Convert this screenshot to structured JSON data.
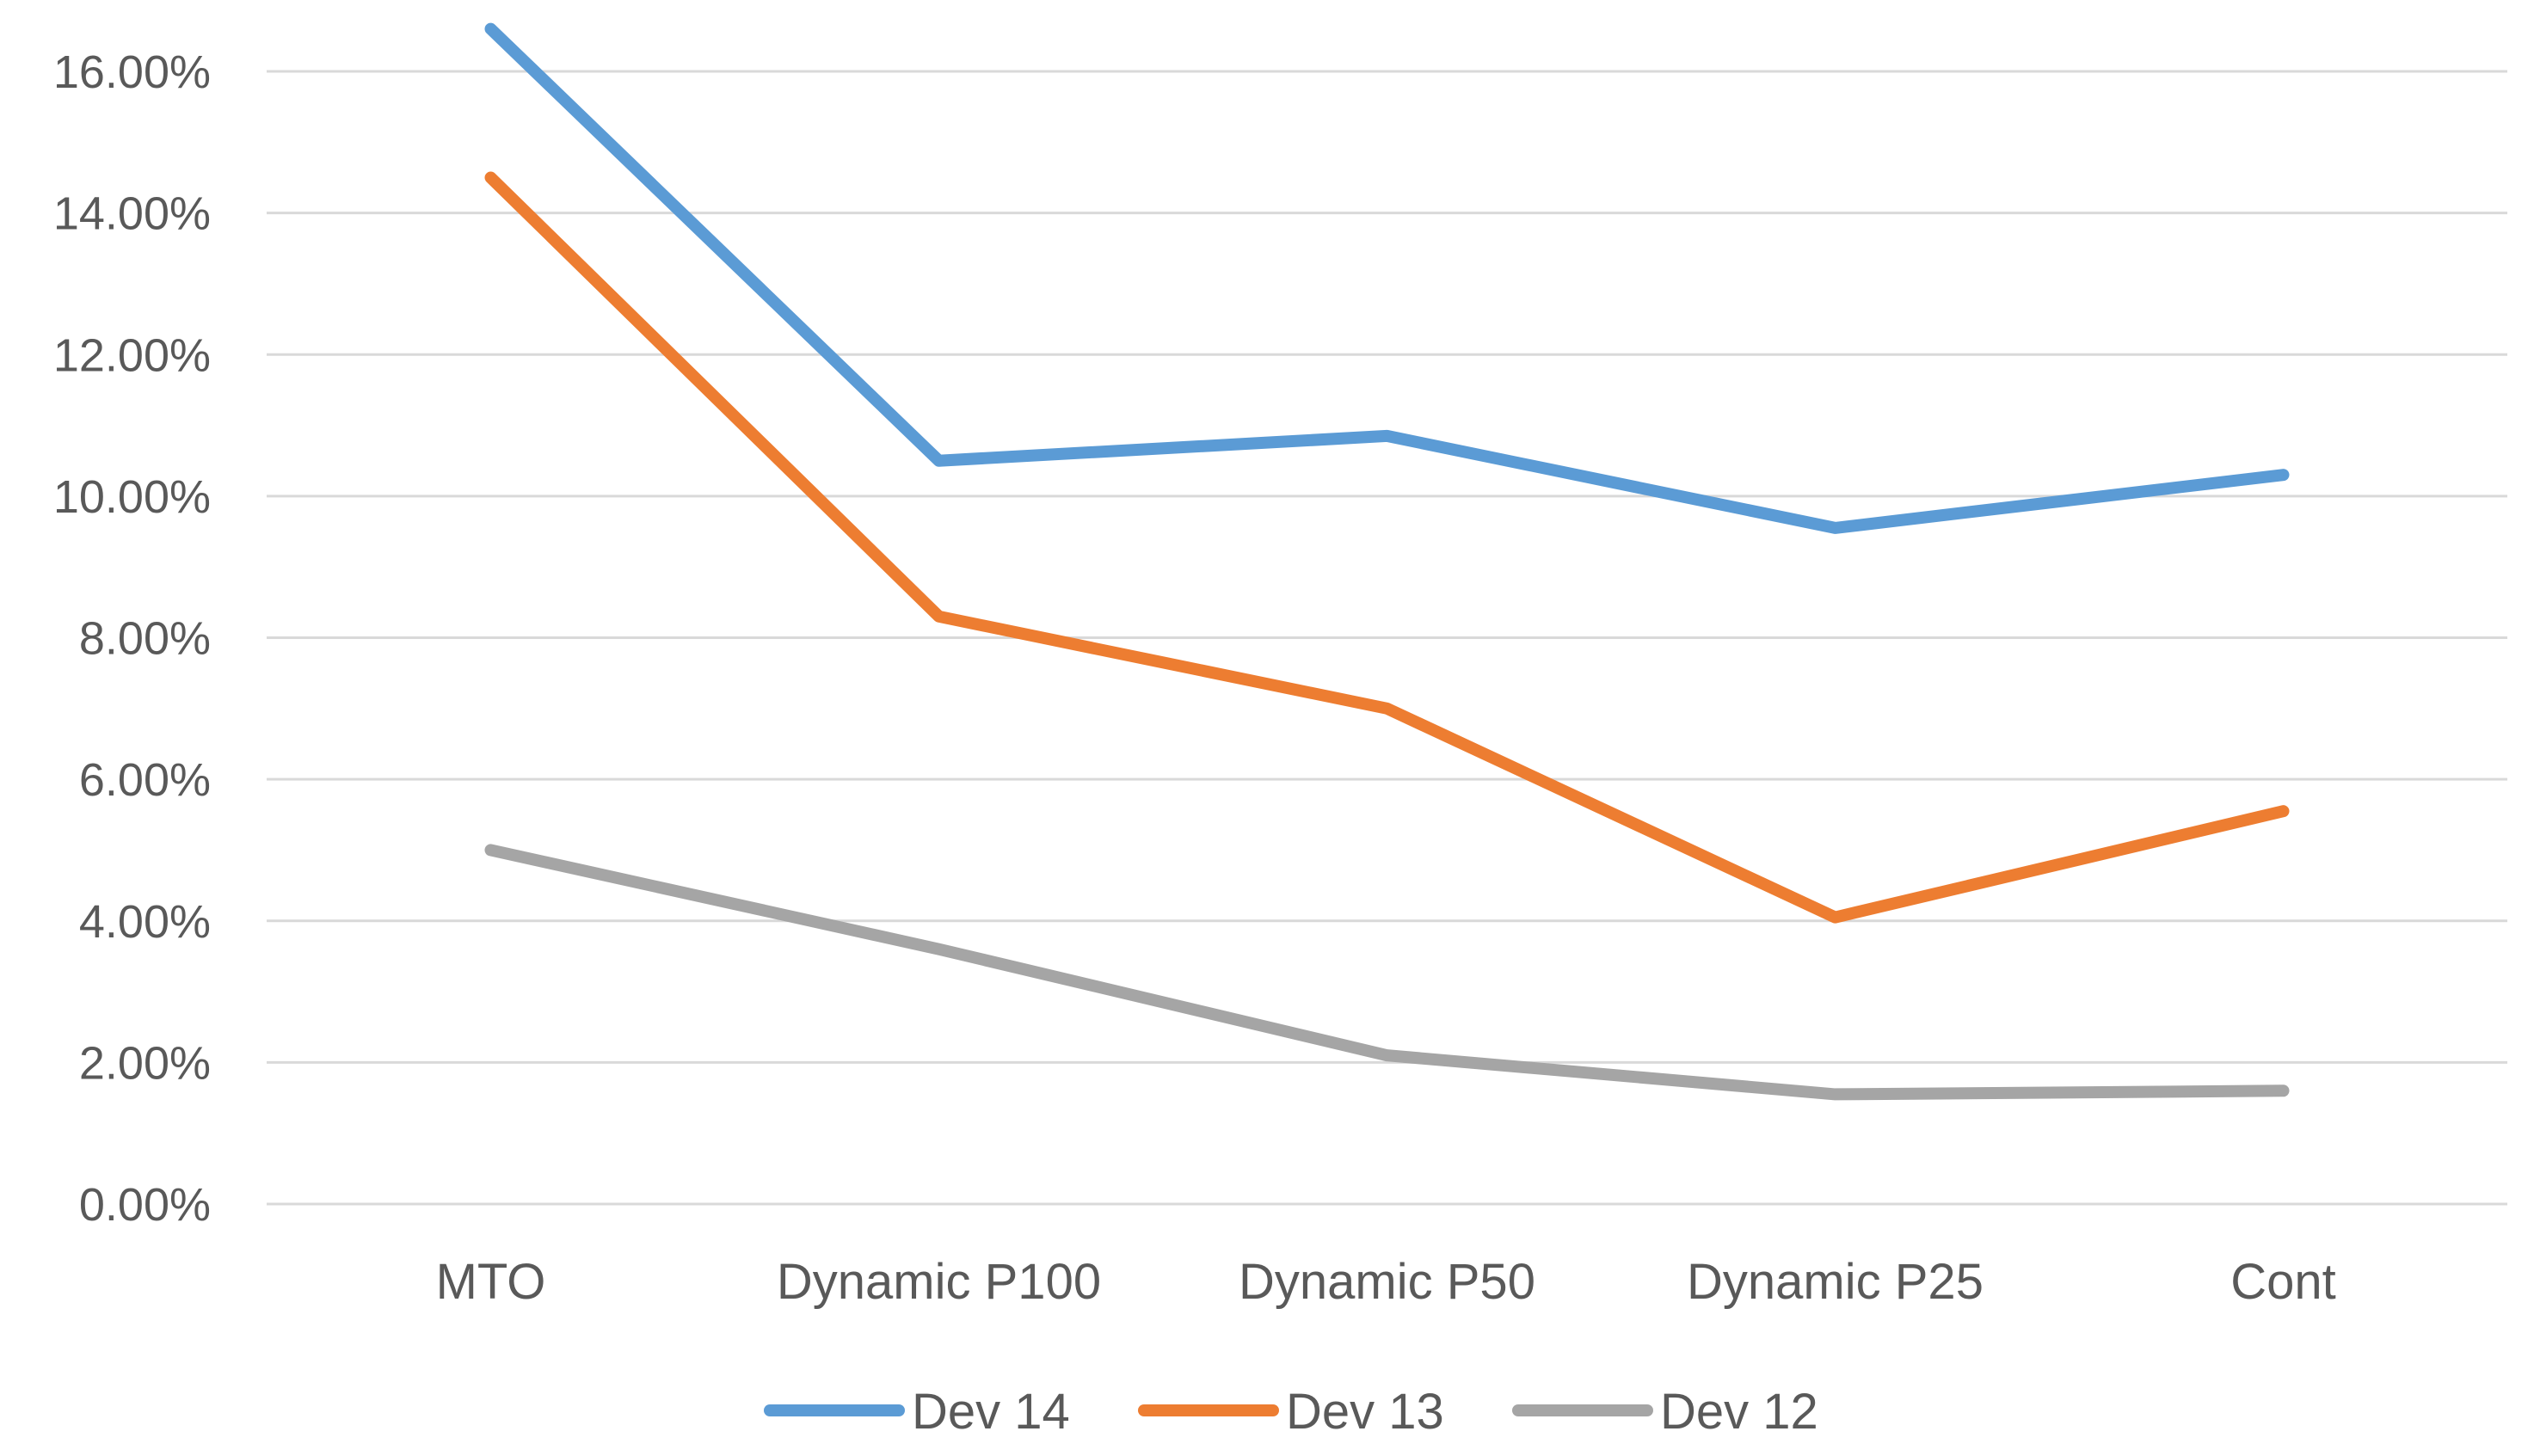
{
  "chart_data": {
    "type": "line",
    "title": "",
    "xlabel": "",
    "ylabel": "",
    "categories": [
      "MTO",
      "Dynamic P100",
      "Dynamic P50",
      "Dynamic P25",
      "Cont"
    ],
    "ylim": [
      0,
      0.16
    ],
    "yticks": [
      {
        "value": 0.0,
        "label": "0.00%"
      },
      {
        "value": 0.02,
        "label": "2.00%"
      },
      {
        "value": 0.04,
        "label": "4.00%"
      },
      {
        "value": 0.06,
        "label": "6.00%"
      },
      {
        "value": 0.08,
        "label": "8.00%"
      },
      {
        "value": 0.1,
        "label": "10.00%"
      },
      {
        "value": 0.12,
        "label": "12.00%"
      },
      {
        "value": 0.14,
        "label": "14.00%"
      },
      {
        "value": 0.16,
        "label": "16.00%"
      }
    ],
    "grid": true,
    "legend_position": "bottom",
    "series": [
      {
        "name": "Dev 14",
        "color": "#5b9bd5",
        "values": [
          0.166,
          0.105,
          0.1085,
          0.0955,
          0.103
        ]
      },
      {
        "name": "Dev 13",
        "color": "#ed7d31",
        "values": [
          0.145,
          0.083,
          0.07,
          0.0405,
          0.0555
        ]
      },
      {
        "name": "Dev 12",
        "color": "#a5a5a5",
        "values": [
          0.05,
          0.036,
          0.021,
          0.0155,
          0.016
        ]
      }
    ]
  }
}
